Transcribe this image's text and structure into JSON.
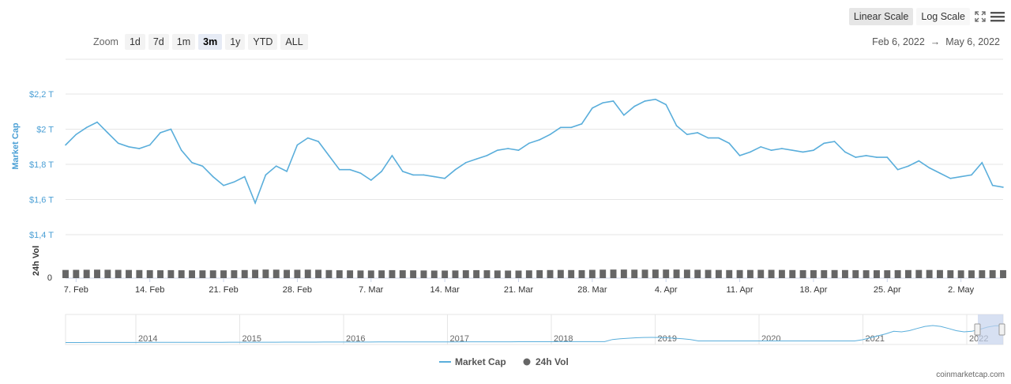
{
  "toolbar": {
    "zoom_label": "Zoom",
    "zoom_buttons": [
      "1d",
      "7d",
      "1m",
      "3m",
      "1y",
      "YTD",
      "ALL"
    ],
    "active_zoom": "3m",
    "linear_label": "Linear Scale",
    "log_label": "Log Scale",
    "active_scale": "Linear Scale",
    "fullscreen_icon": "expand-icon",
    "menu_icon": "hamburger-menu-icon"
  },
  "date_range": {
    "from": "Feb 6, 2022",
    "arrow": "→",
    "to": "May 6, 2022"
  },
  "watermark": "coinmarketcap.com",
  "colors": {
    "line": "#5aaedb",
    "volume": "#666666",
    "accent_axis": "#4a9fd5",
    "navigator_mask": "#c6d3ec"
  },
  "chart_data": {
    "type": "line",
    "ylabel": "Market Cap",
    "ylim": [
      1.4,
      2.2
    ],
    "y_ticks": [
      "$1,4 T",
      "$1,6 T",
      "$1,8 T",
      "$2 T",
      "$2,2 T"
    ],
    "x_ticks": [
      "7. Feb",
      "14. Feb",
      "21. Feb",
      "28. Feb",
      "7. Mar",
      "14. Mar",
      "21. Mar",
      "28. Mar",
      "4. Apr",
      "11. Apr",
      "18. Apr",
      "25. Apr",
      "2. May"
    ],
    "x_range": [
      "2022-02-06",
      "2022-05-06"
    ],
    "grid": true,
    "legend_position": "bottom-center",
    "series": [
      {
        "name": "Market Cap",
        "unit": "$ T",
        "x": [
          "2022-02-06",
          "2022-02-07",
          "2022-02-08",
          "2022-02-09",
          "2022-02-10",
          "2022-02-11",
          "2022-02-12",
          "2022-02-13",
          "2022-02-14",
          "2022-02-15",
          "2022-02-16",
          "2022-02-17",
          "2022-02-18",
          "2022-02-19",
          "2022-02-20",
          "2022-02-21",
          "2022-02-22",
          "2022-02-23",
          "2022-02-24",
          "2022-02-25",
          "2022-02-26",
          "2022-02-27",
          "2022-02-28",
          "2022-03-01",
          "2022-03-02",
          "2022-03-03",
          "2022-03-04",
          "2022-03-05",
          "2022-03-06",
          "2022-03-07",
          "2022-03-08",
          "2022-03-09",
          "2022-03-10",
          "2022-03-11",
          "2022-03-12",
          "2022-03-13",
          "2022-03-14",
          "2022-03-15",
          "2022-03-16",
          "2022-03-17",
          "2022-03-18",
          "2022-03-19",
          "2022-03-20",
          "2022-03-21",
          "2022-03-22",
          "2022-03-23",
          "2022-03-24",
          "2022-03-25",
          "2022-03-26",
          "2022-03-27",
          "2022-03-28",
          "2022-03-29",
          "2022-03-30",
          "2022-03-31",
          "2022-04-01",
          "2022-04-02",
          "2022-04-03",
          "2022-04-04",
          "2022-04-05",
          "2022-04-06",
          "2022-04-07",
          "2022-04-08",
          "2022-04-09",
          "2022-04-10",
          "2022-04-11",
          "2022-04-12",
          "2022-04-13",
          "2022-04-14",
          "2022-04-15",
          "2022-04-16",
          "2022-04-17",
          "2022-04-18",
          "2022-04-19",
          "2022-04-20",
          "2022-04-21",
          "2022-04-22",
          "2022-04-23",
          "2022-04-24",
          "2022-04-25",
          "2022-04-26",
          "2022-04-27",
          "2022-04-28",
          "2022-04-29",
          "2022-04-30",
          "2022-05-01",
          "2022-05-02",
          "2022-05-03",
          "2022-05-04",
          "2022-05-05",
          "2022-05-06"
        ],
        "values": [
          1.91,
          1.97,
          2.01,
          2.04,
          1.98,
          1.92,
          1.9,
          1.89,
          1.91,
          1.98,
          2.0,
          1.88,
          1.81,
          1.79,
          1.73,
          1.68,
          1.7,
          1.73,
          1.58,
          1.74,
          1.79,
          1.76,
          1.91,
          1.95,
          1.93,
          1.85,
          1.77,
          1.77,
          1.75,
          1.71,
          1.76,
          1.85,
          1.76,
          1.74,
          1.74,
          1.73,
          1.72,
          1.77,
          1.81,
          1.83,
          1.85,
          1.88,
          1.89,
          1.88,
          1.92,
          1.94,
          1.97,
          2.01,
          2.01,
          2.03,
          2.12,
          2.15,
          2.16,
          2.08,
          2.13,
          2.16,
          2.17,
          2.14,
          2.02,
          1.97,
          1.98,
          1.95,
          1.95,
          1.92,
          1.85,
          1.87,
          1.9,
          1.88,
          1.89,
          1.88,
          1.87,
          1.88,
          1.92,
          1.93,
          1.87,
          1.84,
          1.85,
          1.84,
          1.84,
          1.77,
          1.79,
          1.82,
          1.78,
          1.75,
          1.72,
          1.73,
          1.74,
          1.81,
          1.68,
          1.67
        ]
      },
      {
        "name": "24h Vol",
        "unit": "$ B",
        "values": [
          82,
          83,
          84,
          85,
          84,
          83,
          82,
          81,
          80,
          79,
          80,
          79,
          78,
          78,
          78,
          78,
          79,
          81,
          84,
          86,
          85,
          83,
          84,
          85,
          84,
          81,
          79,
          78,
          77,
          77,
          78,
          80,
          79,
          78,
          77,
          76,
          76,
          77,
          79,
          80,
          79,
          77,
          76,
          76,
          78,
          80,
          81,
          82,
          81,
          80,
          83,
          85,
          86,
          86,
          85,
          85,
          86,
          86,
          86,
          85,
          84,
          83,
          82,
          81,
          81,
          82,
          83,
          83,
          82,
          81,
          80,
          80,
          80,
          81,
          81,
          80,
          79,
          79,
          79,
          80,
          81,
          82,
          82,
          81,
          79,
          78,
          78,
          79,
          80,
          80
        ]
      }
    ],
    "navigator": {
      "years": [
        "2014",
        "2015",
        "2016",
        "2017",
        "2018",
        "2019",
        "2020",
        "2021",
        "2022"
      ]
    }
  }
}
